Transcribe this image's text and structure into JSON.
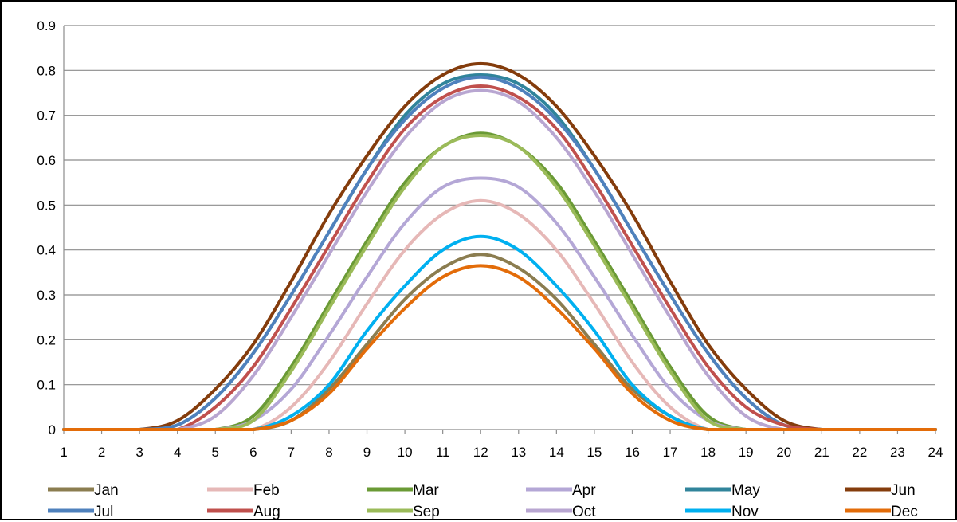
{
  "chart_data": {
    "type": "line",
    "title": "",
    "xlabel": "",
    "ylabel": "",
    "x": [
      1,
      2,
      3,
      4,
      5,
      6,
      7,
      8,
      9,
      10,
      11,
      12,
      13,
      14,
      15,
      16,
      17,
      18,
      19,
      20,
      21,
      22,
      23,
      24
    ],
    "xlim": [
      1,
      24
    ],
    "ylim": [
      0,
      0.9
    ],
    "yticks": [
      "0",
      "0.1",
      "0.2",
      "0.3",
      "0.4",
      "0.5",
      "0.6",
      "0.7",
      "0.8",
      "0.9"
    ],
    "xticks": [
      "1",
      "2",
      "3",
      "4",
      "5",
      "6",
      "7",
      "8",
      "9",
      "10",
      "11",
      "12",
      "13",
      "14",
      "15",
      "16",
      "17",
      "18",
      "19",
      "20",
      "21",
      "22",
      "23",
      "24"
    ],
    "grid": "horizontal",
    "legend_position": "bottom",
    "series": [
      {
        "name": "Jan",
        "color": "#8b7d50",
        "values": [
          0,
          0,
          0,
          0,
          0,
          0,
          0.02,
          0.09,
          0.19,
          0.29,
          0.36,
          0.39,
          0.36,
          0.29,
          0.19,
          0.09,
          0.03,
          0,
          0,
          0,
          0,
          0,
          0,
          0
        ]
      },
      {
        "name": "Feb",
        "color": "#e6b8b7",
        "values": [
          0,
          0,
          0,
          0,
          0,
          0,
          0.05,
          0.15,
          0.28,
          0.4,
          0.48,
          0.51,
          0.48,
          0.4,
          0.28,
          0.15,
          0.05,
          0,
          0,
          0,
          0,
          0,
          0,
          0
        ]
      },
      {
        "name": "Mar",
        "color": "#6a9a35",
        "values": [
          0,
          0,
          0,
          0,
          0,
          0.03,
          0.14,
          0.28,
          0.42,
          0.55,
          0.63,
          0.66,
          0.63,
          0.55,
          0.42,
          0.28,
          0.14,
          0.03,
          0,
          0,
          0,
          0,
          0,
          0
        ]
      },
      {
        "name": "Apr",
        "color": "#b4a7d6",
        "values": [
          0,
          0,
          0,
          0,
          0,
          0.02,
          0.09,
          0.21,
          0.34,
          0.46,
          0.54,
          0.56,
          0.54,
          0.46,
          0.34,
          0.21,
          0.09,
          0.02,
          0,
          0,
          0,
          0,
          0,
          0
        ]
      },
      {
        "name": "May",
        "color": "#31849b",
        "values": [
          0,
          0,
          0,
          0.01,
          0.07,
          0.17,
          0.3,
          0.44,
          0.58,
          0.7,
          0.77,
          0.79,
          0.77,
          0.7,
          0.58,
          0.44,
          0.3,
          0.17,
          0.07,
          0.01,
          0,
          0,
          0,
          0
        ]
      },
      {
        "name": "Jun",
        "color": "#843c0c",
        "values": [
          0,
          0,
          0,
          0.02,
          0.09,
          0.19,
          0.33,
          0.48,
          0.61,
          0.72,
          0.79,
          0.815,
          0.79,
          0.72,
          0.61,
          0.48,
          0.33,
          0.19,
          0.09,
          0.02,
          0,
          0,
          0,
          0
        ]
      },
      {
        "name": "Jul",
        "color": "#4f81bd",
        "values": [
          0,
          0,
          0,
          0.01,
          0.07,
          0.17,
          0.3,
          0.44,
          0.58,
          0.69,
          0.76,
          0.785,
          0.76,
          0.69,
          0.58,
          0.44,
          0.3,
          0.17,
          0.07,
          0.01,
          0,
          0,
          0,
          0
        ]
      },
      {
        "name": "Aug",
        "color": "#c0504d",
        "values": [
          0,
          0,
          0,
          0,
          0.05,
          0.14,
          0.27,
          0.41,
          0.55,
          0.67,
          0.74,
          0.765,
          0.74,
          0.67,
          0.55,
          0.41,
          0.27,
          0.14,
          0.05,
          0.01,
          0,
          0,
          0,
          0
        ]
      },
      {
        "name": "Sep",
        "color": "#9bbb59",
        "values": [
          0,
          0,
          0,
          0,
          0,
          0.02,
          0.13,
          0.27,
          0.41,
          0.54,
          0.63,
          0.655,
          0.63,
          0.54,
          0.41,
          0.27,
          0.13,
          0.02,
          0,
          0,
          0,
          0,
          0,
          0
        ]
      },
      {
        "name": "Oct",
        "color": "#b8a6d1",
        "values": [
          0,
          0,
          0,
          0,
          0.03,
          0.12,
          0.25,
          0.39,
          0.53,
          0.65,
          0.73,
          0.755,
          0.73,
          0.65,
          0.53,
          0.39,
          0.25,
          0.12,
          0.03,
          0,
          0,
          0,
          0,
          0
        ]
      },
      {
        "name": "Nov",
        "color": "#00b0f0",
        "values": [
          0,
          0,
          0,
          0,
          0,
          0,
          0.03,
          0.1,
          0.22,
          0.32,
          0.4,
          0.43,
          0.4,
          0.32,
          0.22,
          0.1,
          0.03,
          0,
          0,
          0,
          0,
          0,
          0,
          0
        ]
      },
      {
        "name": "Dec",
        "color": "#e36c09",
        "values": [
          0,
          0,
          0,
          0,
          0,
          0,
          0.02,
          0.08,
          0.18,
          0.27,
          0.34,
          0.365,
          0.34,
          0.27,
          0.18,
          0.08,
          0.02,
          0,
          0,
          0,
          0,
          0,
          0,
          0
        ]
      }
    ]
  }
}
